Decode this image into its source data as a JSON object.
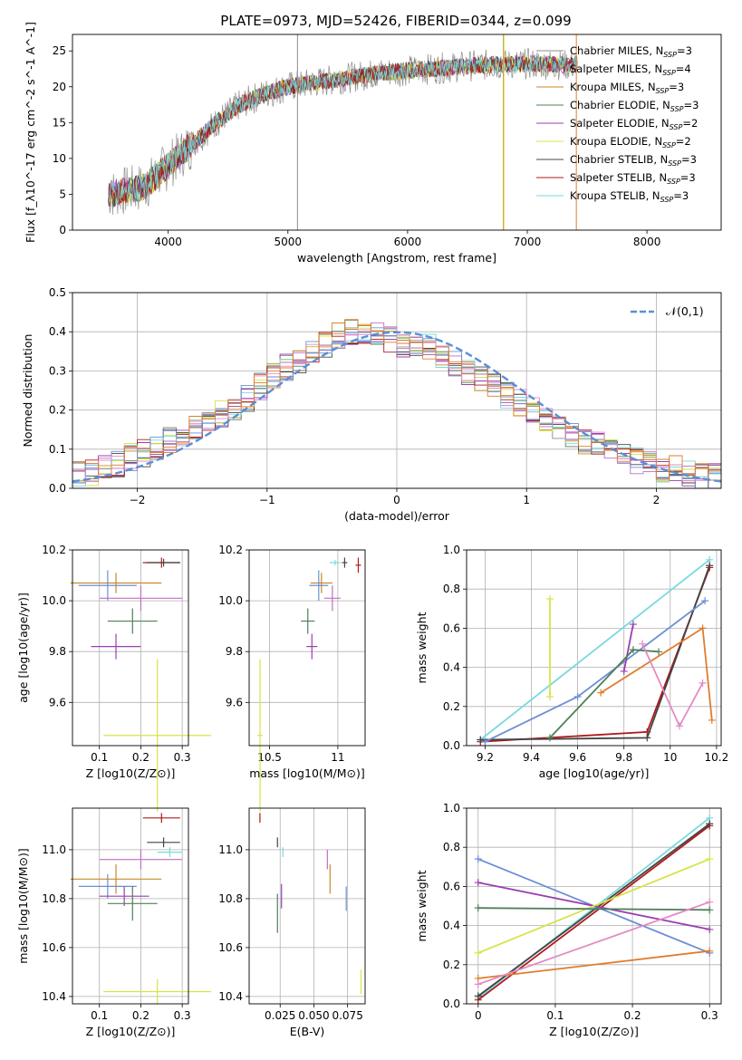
{
  "figure": {
    "title": "PLATE=0973, MJD=52426, FIBERID=0344, z=0.099"
  },
  "colors": {
    "Chabrier MILES": "#8c8c8c",
    "Salpeter MILES": "#c06ec2",
    "Kroupa MILES": "#c98a2a",
    "Chabrier ELODIE": "#4f7f5a",
    "Salpeter ELODIE": "#9a3fb0",
    "Kroupa ELODIE": "#d7e34a",
    "Chabrier STELIB": "#444444",
    "Salpeter STELIB": "#b01a1a",
    "Kroupa STELIB": "#79d9df",
    "hist_extra_1": "#6b8fd6",
    "hist_extra_2": "#e38bc4",
    "hist_extra_3": "#e07c2c",
    "normal_curve": "#5b8ed8"
  },
  "chart_data": [
    {
      "id": "spectrum",
      "type": "line",
      "xlabel": "wavelength [Angstrom, rest frame]",
      "ylabel": "Flux [f_λ10^-17 erg cm^-2 s^-1 A^-1]",
      "xlim": [
        3200,
        8620
      ],
      "ylim": [
        0,
        27.3
      ],
      "xticks": [
        4000,
        5000,
        6000,
        7000,
        8000
      ],
      "yticks": [
        0,
        5,
        10,
        15,
        20,
        25
      ],
      "grid": false,
      "legend": "top-right",
      "data_range": [
        3500,
        7420
      ],
      "continuum": [
        [
          3500,
          5
        ],
        [
          3800,
          6
        ],
        [
          4000,
          9
        ],
        [
          4200,
          12
        ],
        [
          4400,
          15
        ],
        [
          4600,
          17.5
        ],
        [
          4800,
          19
        ],
        [
          5000,
          20
        ],
        [
          5400,
          21
        ],
        [
          5800,
          22
        ],
        [
          6200,
          22.5
        ],
        [
          6600,
          23
        ],
        [
          7000,
          23.2
        ],
        [
          7420,
          23
        ]
      ],
      "series": [
        {
          "name": "Chabrier MILES",
          "nssp": "3"
        },
        {
          "name": "Salpeter MILES",
          "nssp": "4"
        },
        {
          "name": "Kroupa MILES",
          "nssp": "3"
        },
        {
          "name": "Chabrier ELODIE",
          "nssp": "3"
        },
        {
          "name": "Salpeter ELODIE",
          "nssp": "2"
        },
        {
          "name": "Kroupa ELODIE",
          "nssp": "2"
        },
        {
          "name": "Chabrier STELIB",
          "nssp": "3"
        },
        {
          "name": "Salpeter STELIB",
          "nssp": "3"
        },
        {
          "name": "Kroupa STELIB",
          "nssp": "3"
        }
      ]
    },
    {
      "id": "residuals",
      "type": "bar",
      "xlabel": "(data-model)/error",
      "ylabel": "Normed distribution",
      "xlim": [
        -2.5,
        2.5
      ],
      "ylim": [
        0,
        0.5
      ],
      "xticks": [
        -2,
        -1,
        0,
        1,
        2
      ],
      "yticks": [
        0.0,
        0.1,
        0.2,
        0.3,
        0.4,
        0.5
      ],
      "grid": true,
      "legend": "top-right",
      "legend_label": "𝒩(0,1)",
      "bin_width": 0.1,
      "bin_start": -2.5,
      "envelope": [
        0.04,
        0.04,
        0.05,
        0.06,
        0.08,
        0.09,
        0.1,
        0.12,
        0.13,
        0.15,
        0.17,
        0.19,
        0.21,
        0.23,
        0.26,
        0.29,
        0.31,
        0.33,
        0.35,
        0.37,
        0.39,
        0.4,
        0.4,
        0.39,
        0.38,
        0.37,
        0.37,
        0.36,
        0.34,
        0.32,
        0.3,
        0.28,
        0.26,
        0.24,
        0.22,
        0.2,
        0.18,
        0.16,
        0.14,
        0.12,
        0.11,
        0.09,
        0.08,
        0.07,
        0.06,
        0.05,
        0.05,
        0.04,
        0.03,
        0.03
      ]
    },
    {
      "id": "age_vs_Z",
      "type": "scatter",
      "xlabel": "Z [log10(Z/Z⊙)]",
      "ylabel": "age  [log10(age/yr)]",
      "xlim": [
        0.035,
        0.315
      ],
      "ylim": [
        9.43,
        10.2
      ],
      "xticks": [
        0.1,
        0.2,
        0.3
      ],
      "yticks": [
        9.6,
        9.8,
        10.0,
        10.2
      ],
      "grid": true,
      "points": [
        {
          "series": "Salpeter STELIB",
          "x": 0.25,
          "xerr": 0.045,
          "y": 10.15,
          "yerr": 0.02
        },
        {
          "series": "Chabrier STELIB",
          "x": 0.255,
          "xerr": 0.04,
          "y": 10.15,
          "yerr": 0.015
        },
        {
          "series": "Kroupa MILES",
          "x": 0.14,
          "xerr": 0.11,
          "y": 10.07,
          "yerr": 0.04
        },
        {
          "series": "hist_extra_1",
          "x": 0.12,
          "xerr": 0.07,
          "y": 10.06,
          "yerr": 0.06
        },
        {
          "series": "Salpeter MILES",
          "x": 0.2,
          "xerr": 0.1,
          "y": 10.01,
          "yerr": 0.05
        },
        {
          "series": "Chabrier ELODIE",
          "x": 0.18,
          "xerr": 0.06,
          "y": 9.92,
          "yerr": 0.05
        },
        {
          "series": "Salpeter ELODIE",
          "x": 0.14,
          "xerr": 0.06,
          "y": 9.82,
          "yerr": 0.05
        },
        {
          "series": "Kroupa ELODIE",
          "x": 0.24,
          "xerr": 0.13,
          "y": 9.47,
          "yerr": 0.3
        }
      ]
    },
    {
      "id": "age_vs_mass",
      "type": "scatter",
      "xlabel": "mass [log10(M/M⊙)]",
      "ylabel": "",
      "xlim": [
        10.35,
        11.2
      ],
      "ylim": [
        9.43,
        10.2
      ],
      "xticks": [
        10.5,
        11.0
      ],
      "yticks": [
        9.6,
        9.8,
        10.0,
        10.2
      ],
      "grid": true,
      "points": [
        {
          "series": "Salpeter STELIB",
          "x": 11.15,
          "xerr": 0.02,
          "y": 10.14,
          "yerr": 0.03
        },
        {
          "series": "Chabrier STELIB",
          "x": 11.05,
          "xerr": 0.02,
          "y": 10.15,
          "yerr": 0.02
        },
        {
          "series": "Kroupa STELIB",
          "x": 10.98,
          "xerr": 0.04,
          "y": 10.15,
          "yerr": 0.01
        },
        {
          "series": "Kroupa MILES",
          "x": 10.88,
          "xerr": 0.08,
          "y": 10.07,
          "yerr": 0.04
        },
        {
          "series": "hist_extra_1",
          "x": 10.86,
          "xerr": 0.07,
          "y": 10.06,
          "yerr": 0.06
        },
        {
          "series": "Salpeter MILES",
          "x": 10.96,
          "xerr": 0.06,
          "y": 10.01,
          "yerr": 0.05
        },
        {
          "series": "Chabrier ELODIE",
          "x": 10.78,
          "xerr": 0.05,
          "y": 9.92,
          "yerr": 0.05
        },
        {
          "series": "Salpeter ELODIE",
          "x": 10.81,
          "xerr": 0.04,
          "y": 9.82,
          "yerr": 0.05
        },
        {
          "series": "Kroupa ELODIE",
          "x": 10.43,
          "xerr": 0.02,
          "y": 9.47,
          "yerr": 0.3
        }
      ]
    },
    {
      "id": "weight_vs_age",
      "type": "line",
      "xlabel": "age  [log10(age/yr)]",
      "ylabel": "mass weight",
      "xlim": [
        9.12,
        10.22
      ],
      "ylim": [
        0.0,
        1.0
      ],
      "xticks": [
        9.2,
        9.4,
        9.6,
        9.8,
        10.0,
        10.2
      ],
      "yticks": [
        0.0,
        0.2,
        0.4,
        0.6,
        0.8,
        1.0
      ],
      "grid": true,
      "series": [
        {
          "name": "Kroupa STELIB",
          "x": [
            9.18,
            10.17
          ],
          "y": [
            0.03,
            0.95
          ]
        },
        {
          "name": "Salpeter STELIB",
          "x": [
            9.18,
            9.9,
            10.17
          ],
          "y": [
            0.02,
            0.07,
            0.91
          ]
        },
        {
          "name": "Chabrier STELIB",
          "x": [
            9.18,
            9.9,
            10.17
          ],
          "y": [
            0.03,
            0.04,
            0.92
          ]
        },
        {
          "name": "hist_extra_1",
          "x": [
            9.2,
            9.6,
            10.15
          ],
          "y": [
            0.02,
            0.25,
            0.74
          ]
        },
        {
          "name": "Salpeter ELODIE",
          "x": [
            9.8,
            9.84
          ],
          "y": [
            0.38,
            0.62
          ]
        },
        {
          "name": "Kroupa ELODIE",
          "x": [
            9.48,
            9.48
          ],
          "y": [
            0.25,
            0.75
          ]
        },
        {
          "name": "Chabrier ELODIE",
          "x": [
            9.48,
            9.84,
            9.95
          ],
          "y": [
            0.04,
            0.49,
            0.48
          ]
        },
        {
          "name": "hist_extra_3",
          "x": [
            9.7,
            10.14,
            10.18
          ],
          "y": [
            0.27,
            0.6,
            0.13
          ]
        },
        {
          "name": "hist_extra_2",
          "x": [
            9.88,
            10.04,
            10.14
          ],
          "y": [
            0.52,
            0.1,
            0.32
          ]
        }
      ]
    },
    {
      "id": "mass_vs_Z",
      "type": "scatter",
      "xlabel": "Z [log10(Z/Z⊙)]",
      "ylabel": "mass [log10(M/M⊙)]",
      "xlim": [
        0.035,
        0.315
      ],
      "ylim": [
        10.37,
        11.17
      ],
      "xticks": [
        0.1,
        0.2,
        0.3
      ],
      "yticks": [
        10.4,
        10.6,
        10.8,
        11.0
      ],
      "grid": true,
      "points": [
        {
          "series": "Salpeter STELIB",
          "x": 0.25,
          "xerr": 0.045,
          "y": 11.13,
          "yerr": 0.02
        },
        {
          "series": "Chabrier STELIB",
          "x": 0.255,
          "xerr": 0.04,
          "y": 11.03,
          "yerr": 0.02
        },
        {
          "series": "Kroupa STELIB",
          "x": 0.27,
          "xerr": 0.03,
          "y": 10.99,
          "yerr": 0.02
        },
        {
          "series": "Salpeter MILES",
          "x": 0.2,
          "xerr": 0.1,
          "y": 10.96,
          "yerr": 0.04
        },
        {
          "series": "Kroupa MILES",
          "x": 0.14,
          "xerr": 0.11,
          "y": 10.88,
          "yerr": 0.06
        },
        {
          "series": "hist_extra_1",
          "x": 0.12,
          "xerr": 0.07,
          "y": 10.85,
          "yerr": 0.05
        },
        {
          "series": "Salpeter ELODIE",
          "x": 0.16,
          "xerr": 0.06,
          "y": 10.81,
          "yerr": 0.04
        },
        {
          "series": "Chabrier ELODIE",
          "x": 0.18,
          "xerr": 0.06,
          "y": 10.78,
          "yerr": 0.07
        },
        {
          "series": "Kroupa ELODIE",
          "x": 0.24,
          "xerr": 0.13,
          "y": 10.42,
          "yerr": 0.05
        }
      ]
    },
    {
      "id": "mass_vs_ebv",
      "type": "scatter",
      "xlabel": "E(B-V)",
      "ylabel": "",
      "xlim": [
        0.002,
        0.088
      ],
      "ylim": [
        10.37,
        11.17
      ],
      "xticks": [
        0.025,
        0.05,
        0.075
      ],
      "xticklabels": [
        "0.025",
        "0.050",
        "0.075"
      ],
      "yticks": [
        10.4,
        10.6,
        10.8,
        11.0
      ],
      "grid": true,
      "points": [
        {
          "series": "Salpeter STELIB",
          "x": 0.01,
          "y": 11.13,
          "yerr": 0.02
        },
        {
          "series": "Chabrier STELIB",
          "x": 0.023,
          "y": 11.03,
          "yerr": 0.02
        },
        {
          "series": "Kroupa STELIB",
          "x": 0.027,
          "y": 10.99,
          "yerr": 0.02
        },
        {
          "series": "Salpeter MILES",
          "x": 0.06,
          "y": 10.96,
          "yerr": 0.04
        },
        {
          "series": "Kroupa MILES",
          "x": 0.062,
          "y": 10.88,
          "yerr": 0.06
        },
        {
          "series": "hist_extra_1",
          "x": 0.074,
          "y": 10.8,
          "yerr": 0.05
        },
        {
          "series": "Salpeter ELODIE",
          "x": 0.026,
          "y": 10.81,
          "yerr": 0.05
        },
        {
          "series": "Chabrier ELODIE",
          "x": 0.023,
          "y": 10.74,
          "yerr": 0.08
        },
        {
          "series": "Kroupa ELODIE",
          "x": 0.085,
          "y": 10.46,
          "yerr": 0.05
        }
      ]
    },
    {
      "id": "weight_vs_Z",
      "type": "line",
      "xlabel": "Z [log10(Z/Z⊙)]",
      "ylabel": "mass weight",
      "xlim": [
        -0.015,
        0.315
      ],
      "ylim": [
        0.0,
        1.0
      ],
      "xticks": [
        0.0,
        0.1,
        0.2,
        0.3
      ],
      "yticks": [
        0.0,
        0.2,
        0.4,
        0.6,
        0.8,
        1.0
      ],
      "grid": true,
      "series": [
        {
          "name": "Kroupa STELIB",
          "x": [
            0.0,
            0.3
          ],
          "y": [
            0.03,
            0.95
          ]
        },
        {
          "name": "Salpeter STELIB",
          "x": [
            0.0,
            0.3
          ],
          "y": [
            0.02,
            0.91
          ]
        },
        {
          "name": "Chabrier STELIB",
          "x": [
            0.0,
            0.3
          ],
          "y": [
            0.04,
            0.92
          ]
        },
        {
          "name": "hist_extra_1",
          "x": [
            0.0,
            0.3
          ],
          "y": [
            0.74,
            0.26
          ]
        },
        {
          "name": "Salpeter ELODIE",
          "x": [
            0.0,
            0.3
          ],
          "y": [
            0.62,
            0.38
          ]
        },
        {
          "name": "Kroupa ELODIE",
          "x": [
            0.0,
            0.3
          ],
          "y": [
            0.26,
            0.74
          ]
        },
        {
          "name": "Chabrier ELODIE",
          "x": [
            0.0,
            0.3
          ],
          "y": [
            0.49,
            0.48
          ]
        },
        {
          "name": "hist_extra_3",
          "x": [
            0.0,
            0.3
          ],
          "y": [
            0.13,
            0.27
          ]
        },
        {
          "name": "hist_extra_2",
          "x": [
            0.0,
            0.3
          ],
          "y": [
            0.1,
            0.52
          ]
        }
      ]
    }
  ]
}
